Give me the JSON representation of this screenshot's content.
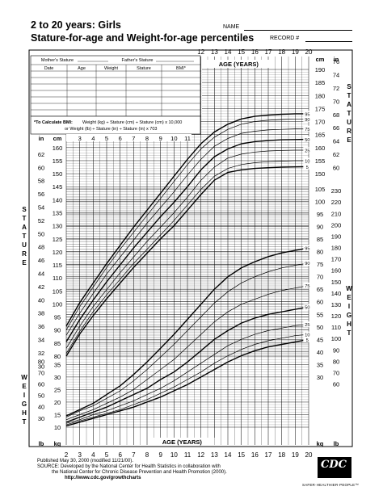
{
  "header": {
    "title": "2 to 20 years: Girls",
    "subtitle": "Stature-for-age and Weight-for-age percentiles",
    "name_label": "NAME",
    "record_label": "RECORD #"
  },
  "record_table": {
    "mother_stature_label": "Mother's Stature",
    "father_stature_label": "Father's Stature",
    "columns": [
      "Date",
      "Age",
      "Weight",
      "Stature",
      "BMI*"
    ],
    "bmi_note_title": "*To Calculate BMI:",
    "bmi_note_line1": "Weight (kg) ÷ Stature (cm) ÷ Stature (cm) x 10,000",
    "bmi_note_line2": "or Weight (lb) ÷ Stature (in) ÷ Stature (in) x 703"
  },
  "chart_data": {
    "type": "line",
    "xlabel": "AGE (YEARS)",
    "x_ticks": [
      2,
      3,
      4,
      5,
      6,
      7,
      8,
      9,
      10,
      11,
      12,
      13,
      14,
      15,
      16,
      17,
      18,
      19,
      20
    ],
    "top_age_ticks": [
      12,
      13,
      14,
      15,
      16,
      17,
      18,
      19,
      20
    ],
    "mid_age_ticks": [
      3,
      4,
      5,
      6,
      7,
      8,
      9,
      10,
      11
    ],
    "xlim": [
      2,
      20
    ],
    "stature": {
      "ylabel": "STATURE",
      "unit_left_in": "in",
      "unit_left_cm": "cm",
      "cm_ticks": [
        80,
        85,
        90,
        95,
        100,
        105,
        110,
        115,
        120,
        125,
        130,
        135,
        140,
        145,
        150,
        155,
        160,
        165,
        170,
        175,
        180,
        185,
        190
      ],
      "in_ticks": [
        30,
        32,
        34,
        36,
        38,
        40,
        42,
        44,
        46,
        48,
        50,
        52,
        54,
        56,
        58,
        60,
        62,
        64,
        66,
        68,
        70,
        72,
        74,
        76
      ],
      "ages": [
        2,
        3,
        4,
        5,
        6,
        7,
        8,
        9,
        10,
        11,
        12,
        13,
        14,
        15,
        16,
        17,
        18,
        19,
        20
      ],
      "series": [
        {
          "name": "5",
          "values": [
            80.0,
            88.5,
            95.5,
            102.0,
            108.0,
            114.0,
            119.5,
            125.0,
            130.0,
            136.0,
            142.0,
            147.5,
            150.5,
            151.5,
            152.0,
            152.3,
            152.5,
            152.6,
            152.7
          ]
        },
        {
          "name": "10",
          "values": [
            81.0,
            89.5,
            97.0,
            103.5,
            109.5,
            115.5,
            121.0,
            126.5,
            132.0,
            138.0,
            144.0,
            149.0,
            152.0,
            153.5,
            154.2,
            154.6,
            154.8,
            155.0,
            155.0
          ]
        },
        {
          "name": "25",
          "values": [
            83.0,
            91.5,
            99.0,
            105.5,
            112.0,
            118.0,
            124.0,
            129.5,
            135.0,
            141.0,
            147.5,
            152.5,
            156.0,
            157.5,
            158.3,
            158.7,
            158.9,
            159.0,
            159.0
          ]
        },
        {
          "name": "50",
          "values": [
            85.5,
            94.0,
            101.5,
            108.5,
            115.0,
            121.5,
            127.5,
            133.5,
            139.0,
            145.0,
            151.5,
            156.5,
            159.5,
            161.5,
            162.3,
            162.7,
            163.0,
            163.1,
            163.2
          ]
        },
        {
          "name": "75",
          "values": [
            88.0,
            96.5,
            104.0,
            111.5,
            118.0,
            124.5,
            131.0,
            137.0,
            143.0,
            149.5,
            155.5,
            160.5,
            163.5,
            165.5,
            166.3,
            166.8,
            167.0,
            167.2,
            167.3
          ]
        },
        {
          "name": "90",
          "values": [
            90.0,
            99.0,
            106.5,
            114.0,
            121.0,
            127.5,
            134.0,
            140.5,
            147.0,
            153.5,
            159.5,
            164.0,
            167.0,
            169.0,
            170.0,
            170.5,
            170.8,
            171.0,
            171.0
          ]
        },
        {
          "name": "95",
          "values": [
            91.5,
            100.5,
            108.0,
            115.5,
            122.5,
            129.5,
            136.0,
            142.5,
            149.0,
            155.5,
            161.5,
            166.0,
            169.0,
            171.0,
            172.0,
            172.5,
            172.8,
            173.0,
            173.0
          ]
        }
      ]
    },
    "weight": {
      "ylabel": "WEIGHT",
      "unit_left_lb": "lb",
      "unit_left_kg": "kg",
      "unit_right_lb": "lb",
      "unit_right_kg": "kg",
      "kg_ticks": [
        10,
        15,
        20,
        25,
        30,
        35,
        40,
        45,
        50,
        55,
        60,
        65,
        70,
        75,
        80,
        85,
        90,
        95,
        100,
        105
      ],
      "lb_ticks": [
        30,
        40,
        50,
        60,
        70,
        80,
        90,
        100,
        110,
        120,
        130,
        140,
        150,
        160,
        170,
        180,
        190,
        200,
        210,
        220,
        230
      ],
      "ages": [
        2,
        3,
        4,
        5,
        6,
        7,
        8,
        9,
        10,
        11,
        12,
        13,
        14,
        15,
        16,
        17,
        18,
        19,
        20
      ],
      "series": [
        {
          "name": "5",
          "values": [
            10.5,
            12.0,
            13.5,
            15.0,
            16.5,
            18.0,
            20.0,
            22.0,
            24.5,
            27.0,
            30.0,
            33.0,
            36.0,
            38.5,
            40.5,
            42.0,
            43.0,
            44.0,
            45.0
          ]
        },
        {
          "name": "10",
          "values": [
            11.0,
            12.5,
            14.0,
            15.5,
            17.0,
            19.0,
            21.0,
            23.5,
            26.0,
            29.0,
            32.0,
            35.5,
            38.5,
            41.0,
            43.0,
            44.5,
            45.5,
            46.5,
            47.0
          ]
        },
        {
          "name": "25",
          "values": [
            11.5,
            13.0,
            15.0,
            16.5,
            18.5,
            20.5,
            23.0,
            25.5,
            28.5,
            32.0,
            35.5,
            39.0,
            42.5,
            45.0,
            47.0,
            48.5,
            49.5,
            50.5,
            51.0
          ]
        },
        {
          "name": "50",
          "values": [
            12.0,
            14.0,
            16.0,
            18.0,
            20.5,
            23.0,
            25.5,
            29.0,
            32.0,
            36.0,
            40.5,
            45.0,
            48.5,
            51.5,
            53.5,
            55.0,
            56.0,
            57.0,
            58.0
          ]
        },
        {
          "name": "75",
          "values": [
            13.0,
            15.0,
            17.0,
            19.5,
            22.0,
            25.0,
            29.0,
            33.0,
            37.0,
            42.0,
            47.0,
            52.0,
            56.0,
            59.0,
            61.0,
            63.0,
            64.5,
            65.5,
            66.5
          ]
        },
        {
          "name": "90",
          "values": [
            14.0,
            16.5,
            18.5,
            21.5,
            24.5,
            28.5,
            33.0,
            38.0,
            43.0,
            48.5,
            54.0,
            59.5,
            64.0,
            67.5,
            70.0,
            72.0,
            73.5,
            74.5,
            75.5
          ]
        },
        {
          "name": "95",
          "values": [
            14.5,
            17.0,
            19.5,
            23.0,
            26.5,
            31.0,
            36.0,
            41.5,
            47.0,
            53.0,
            59.0,
            65.0,
            70.0,
            73.5,
            76.0,
            78.0,
            79.5,
            80.5,
            81.5
          ]
        }
      ]
    }
  },
  "footer": {
    "published": "Published May 30, 2000 (modified 11/21/00).",
    "source_line1": "SOURCE: Developed by the National Center for Health Statistics in collaboration with",
    "source_line2": "the National Center for Chronic Disease Prevention and Health Promotion (2000).",
    "url": "http://www.cdc.gov/growthcharts",
    "logo": "CDC",
    "tagline": "SAFER·HEALTHIER·PEOPLE™"
  }
}
